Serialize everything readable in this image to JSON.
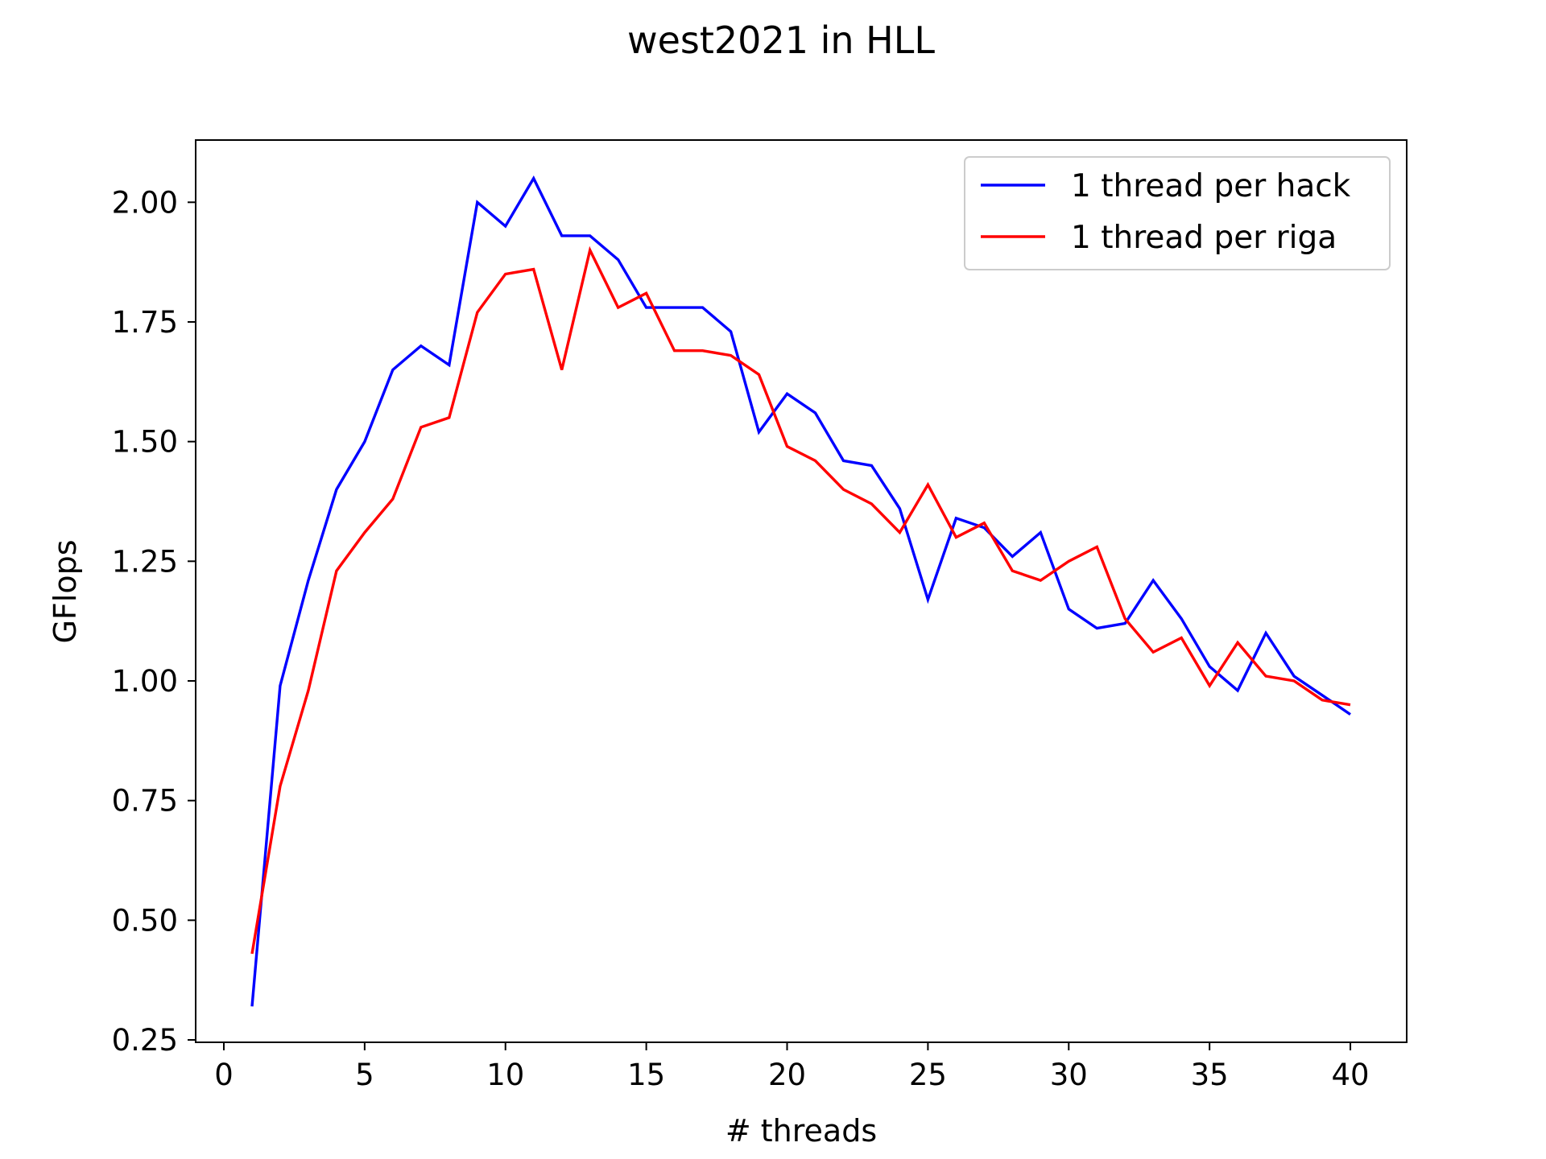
{
  "chart_data": {
    "type": "line",
    "title": "west2021 in HLL",
    "xlabel": "# threads",
    "ylabel": "GFlops",
    "xlim": [
      -1,
      42
    ],
    "ylim": [
      0.245,
      2.13
    ],
    "xticks": [
      0,
      5,
      10,
      15,
      20,
      25,
      30,
      35,
      40
    ],
    "yticks": [
      0.25,
      0.5,
      0.75,
      1.0,
      1.25,
      1.5,
      1.75,
      2.0
    ],
    "ytick_labels": [
      "0.25",
      "0.50",
      "0.75",
      "1.00",
      "1.25",
      "1.50",
      "1.75",
      "2.00"
    ],
    "xtick_labels": [
      "0",
      "5",
      "10",
      "15",
      "20",
      "25",
      "30",
      "35",
      "40"
    ],
    "grid": false,
    "legend_position": "top-right",
    "x": [
      1,
      2,
      3,
      4,
      5,
      6,
      7,
      8,
      9,
      10,
      11,
      12,
      13,
      14,
      15,
      16,
      17,
      18,
      19,
      20,
      21,
      22,
      23,
      24,
      25,
      26,
      27,
      28,
      29,
      30,
      31,
      32,
      33,
      34,
      35,
      36,
      37,
      38,
      39,
      40
    ],
    "series": [
      {
        "name": "1 thread per hack",
        "color": "#0000ff",
        "values": [
          0.32,
          0.99,
          1.21,
          1.4,
          1.5,
          1.65,
          1.7,
          1.66,
          2.0,
          1.95,
          2.05,
          1.93,
          1.93,
          1.88,
          1.78,
          1.78,
          1.78,
          1.73,
          1.52,
          1.6,
          1.56,
          1.46,
          1.45,
          1.36,
          1.17,
          1.34,
          1.32,
          1.26,
          1.31,
          1.15,
          1.11,
          1.12,
          1.21,
          1.13,
          1.03,
          0.98,
          1.1,
          1.01,
          0.97,
          0.93
        ]
      },
      {
        "name": "1 thread per riga",
        "color": "#ff0000",
        "values": [
          0.43,
          0.78,
          0.98,
          1.23,
          1.31,
          1.38,
          1.53,
          1.55,
          1.77,
          1.85,
          1.86,
          1.65,
          1.9,
          1.78,
          1.81,
          1.69,
          1.69,
          1.68,
          1.64,
          1.49,
          1.46,
          1.4,
          1.37,
          1.31,
          1.41,
          1.3,
          1.33,
          1.23,
          1.21,
          1.25,
          1.28,
          1.13,
          1.06,
          1.09,
          0.99,
          1.08,
          1.01,
          1.0,
          0.96,
          0.95
        ]
      }
    ]
  }
}
